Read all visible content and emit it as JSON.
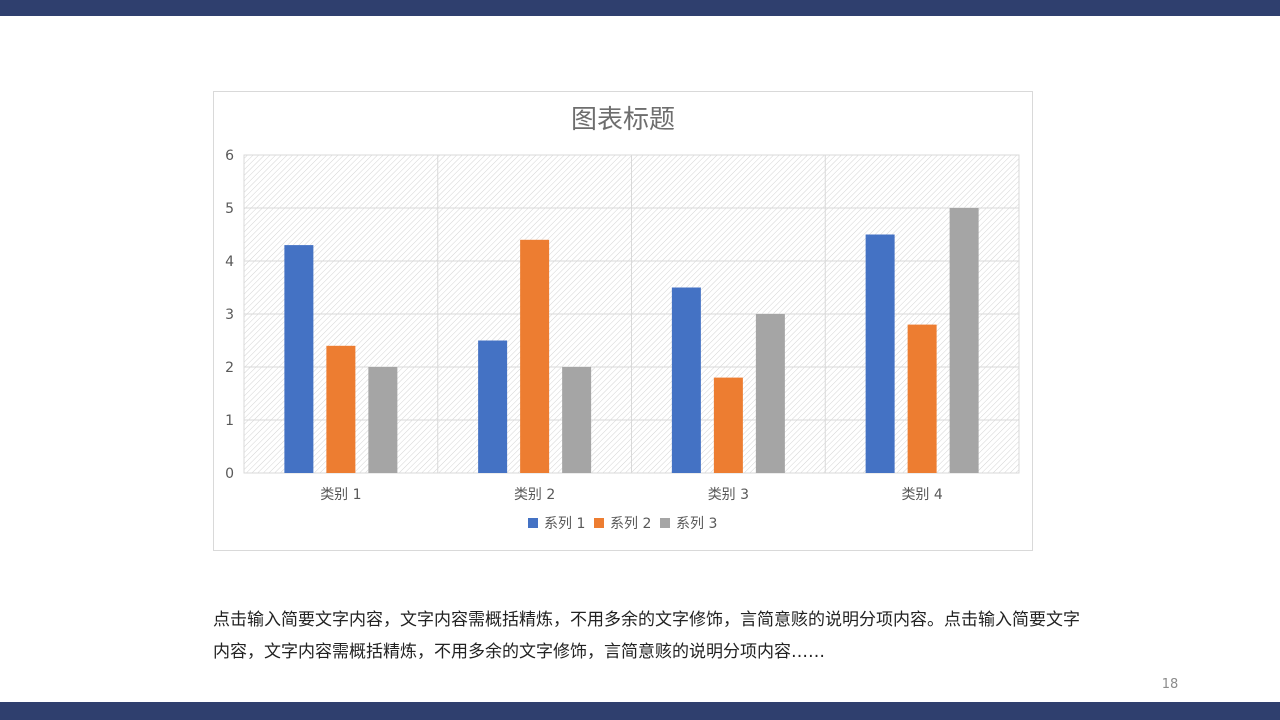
{
  "slide": {
    "page_number": "18",
    "body_text": "点击输入简要文字内容，文字内容需概括精炼，不用多余的文字修饰，言简意赅的说明分项内容。点击输入简要文字内容，文字内容需概括精炼，不用多余的文字修饰，言简意赅的说明分项内容……",
    "accent_color": "#2f3f6e"
  },
  "chart_data": {
    "type": "bar",
    "title": "图表标题",
    "categories": [
      "类别 1",
      "类别 2",
      "类别 3",
      "类别 4"
    ],
    "series": [
      {
        "name": "系列 1",
        "color": "#4472c4",
        "values": [
          4.3,
          2.5,
          3.5,
          4.5
        ]
      },
      {
        "name": "系列 2",
        "color": "#ed7d31",
        "values": [
          2.4,
          4.4,
          1.8,
          2.8
        ]
      },
      {
        "name": "系列 3",
        "color": "#a5a5a5",
        "values": [
          2,
          2,
          3,
          5
        ]
      }
    ],
    "ylim": [
      0,
      6
    ],
    "yticks": [
      0,
      1,
      2,
      3,
      4,
      5,
      6
    ],
    "grid": true,
    "legend_position": "bottom"
  }
}
